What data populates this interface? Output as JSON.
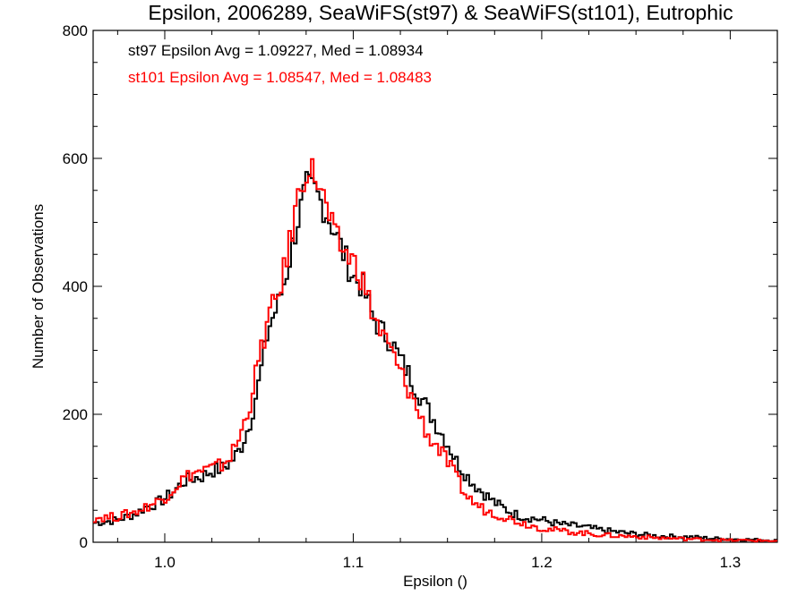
{
  "chart_data": {
    "type": "line",
    "title": "Epsilon, 2006289, SeaWiFS(st97) & SeaWiFS(st101), Eutrophic",
    "xlabel": "Epsilon ()",
    "ylabel": "Number of Observations",
    "xlim": [
      0.962,
      1.325
    ],
    "ylim": [
      0,
      800
    ],
    "xticks": [
      1.0,
      1.1,
      1.2,
      1.3
    ],
    "xtick_labels": [
      "1.0",
      "1.1",
      "1.2",
      "1.3"
    ],
    "yticks": [
      0,
      200,
      400,
      600,
      800
    ],
    "ytick_labels": [
      "0",
      "200",
      "400",
      "600",
      "800"
    ],
    "grid": false,
    "style": "histogram-step",
    "annotations": [
      {
        "text": "st97 Epsilon Avg = 1.09227, Med = 1.08934",
        "color": "#000000"
      },
      {
        "text": "st101 Epsilon Avg = 1.08547, Med = 1.08483",
        "color": "#ff0000"
      }
    ],
    "series": [
      {
        "color": "#000000",
        "points": [
          [
            0.962,
            30
          ],
          [
            0.975,
            35
          ],
          [
            0.985,
            45
          ],
          [
            0.99,
            55
          ],
          [
            0.995,
            60
          ],
          [
            1.0,
            68
          ],
          [
            1.005,
            80
          ],
          [
            1.01,
            95
          ],
          [
            1.015,
            100
          ],
          [
            1.02,
            103
          ],
          [
            1.025,
            112
          ],
          [
            1.03,
            115
          ],
          [
            1.035,
            125
          ],
          [
            1.04,
            145
          ],
          [
            1.045,
            185
          ],
          [
            1.05,
            250
          ],
          [
            1.055,
            335
          ],
          [
            1.06,
            370
          ],
          [
            1.065,
            425
          ],
          [
            1.07,
            495
          ],
          [
            1.075,
            555
          ],
          [
            1.08,
            548
          ],
          [
            1.085,
            520
          ],
          [
            1.09,
            488
          ],
          [
            1.095,
            450
          ],
          [
            1.1,
            415
          ],
          [
            1.105,
            400
          ],
          [
            1.11,
            355
          ],
          [
            1.115,
            330
          ],
          [
            1.12,
            315
          ],
          [
            1.125,
            285
          ],
          [
            1.13,
            260
          ],
          [
            1.135,
            232
          ],
          [
            1.14,
            205
          ],
          [
            1.145,
            180
          ],
          [
            1.15,
            155
          ],
          [
            1.155,
            125
          ],
          [
            1.16,
            105
          ],
          [
            1.165,
            88
          ],
          [
            1.17,
            75
          ],
          [
            1.175,
            62
          ],
          [
            1.18,
            53
          ],
          [
            1.185,
            45
          ],
          [
            1.19,
            40
          ],
          [
            1.2,
            35
          ],
          [
            1.21,
            28
          ],
          [
            1.22,
            25
          ],
          [
            1.23,
            20
          ],
          [
            1.24,
            16
          ],
          [
            1.25,
            13
          ],
          [
            1.26,
            10
          ],
          [
            1.27,
            9
          ],
          [
            1.28,
            8
          ],
          [
            1.29,
            6
          ],
          [
            1.3,
            5
          ],
          [
            1.31,
            4
          ],
          [
            1.325,
            3
          ]
        ]
      },
      {
        "color": "#ff0000",
        "points": [
          [
            0.962,
            38
          ],
          [
            0.975,
            40
          ],
          [
            0.985,
            48
          ],
          [
            0.99,
            55
          ],
          [
            0.995,
            62
          ],
          [
            1.0,
            70
          ],
          [
            1.005,
            85
          ],
          [
            1.01,
            100
          ],
          [
            1.015,
            108
          ],
          [
            1.02,
            112
          ],
          [
            1.025,
            115
          ],
          [
            1.03,
            120
          ],
          [
            1.035,
            135
          ],
          [
            1.04,
            165
          ],
          [
            1.045,
            215
          ],
          [
            1.05,
            285
          ],
          [
            1.055,
            350
          ],
          [
            1.06,
            385
          ],
          [
            1.065,
            445
          ],
          [
            1.07,
            530
          ],
          [
            1.075,
            585
          ],
          [
            1.08,
            575
          ],
          [
            1.085,
            530
          ],
          [
            1.09,
            478
          ],
          [
            1.095,
            455
          ],
          [
            1.1,
            440
          ],
          [
            1.105,
            410
          ],
          [
            1.11,
            360
          ],
          [
            1.115,
            325
          ],
          [
            1.12,
            300
          ],
          [
            1.125,
            265
          ],
          [
            1.13,
            235
          ],
          [
            1.135,
            200
          ],
          [
            1.14,
            165
          ],
          [
            1.145,
            148
          ],
          [
            1.15,
            125
          ],
          [
            1.155,
            100
          ],
          [
            1.16,
            72
          ],
          [
            1.165,
            60
          ],
          [
            1.17,
            50
          ],
          [
            1.175,
            45
          ],
          [
            1.18,
            40
          ],
          [
            1.185,
            35
          ],
          [
            1.19,
            30
          ],
          [
            1.2,
            22
          ],
          [
            1.21,
            18
          ],
          [
            1.22,
            15
          ],
          [
            1.23,
            12
          ],
          [
            1.24,
            10
          ],
          [
            1.25,
            9
          ],
          [
            1.26,
            7
          ],
          [
            1.27,
            6
          ],
          [
            1.28,
            5
          ],
          [
            1.29,
            4
          ],
          [
            1.3,
            3
          ],
          [
            1.31,
            3
          ],
          [
            1.325,
            2
          ]
        ]
      }
    ]
  }
}
